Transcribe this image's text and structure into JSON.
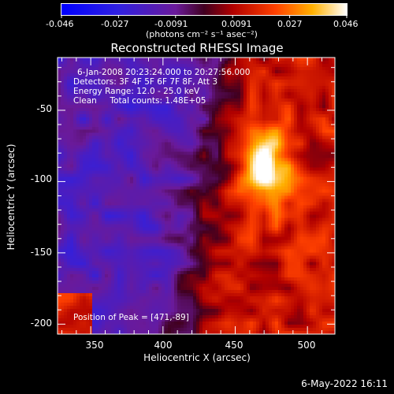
{
  "colorbar": {
    "ticks": [
      "-0.046",
      "-0.027",
      "-0.0091",
      "0.0091",
      "0.027",
      "0.046"
    ],
    "units_label": "(photons cm⁻² s⁻¹ asec⁻²)"
  },
  "chart_data": {
    "type": "heatmap",
    "title": "Reconstructed RHESSI Image",
    "xlabel": "Heliocentric X (arcsec)",
    "ylabel": "Heliocentric Y (arcsec)",
    "xlim": [
      327,
      519
    ],
    "ylim": [
      -207,
      -13
    ],
    "xticks": [
      350,
      400,
      450,
      500
    ],
    "yticks": [
      -50,
      -100,
      -150,
      -200
    ],
    "color_range": [
      -0.046,
      0.046
    ],
    "colormap": "blue-purple-red-yellow-white",
    "peak": [
      471,
      -89
    ],
    "annotations": {
      "time_range": "6-Jan-2008 20:23:24.000 to 20:27:56.000",
      "detectors": "Detectors: 3F 4F 5F 6F 7F 8F, Att 3",
      "energy_range": "Energy Range: 12.0 - 25.0 keV",
      "method_counts": "Clean     Total counts: 1.48E+05",
      "peak_position": "Position of Peak = [471,-89]"
    }
  },
  "footer": {
    "date": "6-May-2022 16:11"
  },
  "colors": {
    "background": "#000000",
    "foreground": "#ffffff",
    "negative": "#2020ff",
    "zero": "#6a1a9a",
    "positive": "#ff4000",
    "peak": "#ffffff"
  }
}
